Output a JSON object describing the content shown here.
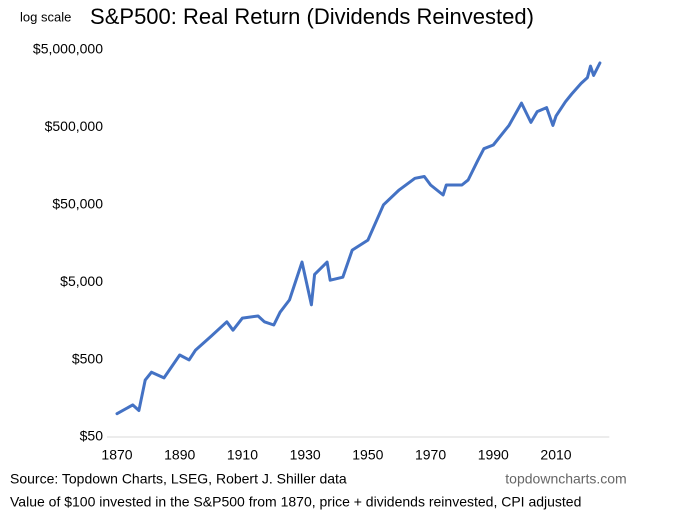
{
  "chart_data": {
    "type": "line",
    "title": "S&P500: Real Return (Dividends Reinvested)",
    "scale_note": "log scale",
    "source": "Source: Topdown Charts, LSEG, Robert J. Shiller data",
    "watermark": "topdowncharts.com",
    "footnote": "Value of $100 invested in the S&P500 from 1870, price + dividends reinvested, CPI adjusted",
    "log_scale": true,
    "color": "#4472c4",
    "x": [
      1870,
      1875,
      1877,
      1879,
      1881,
      1885,
      1890,
      1893,
      1895,
      1900,
      1905,
      1907,
      1910,
      1915,
      1917,
      1920,
      1922,
      1925,
      1929,
      1932,
      1933,
      1937,
      1938,
      1942,
      1945,
      1950,
      1955,
      1960,
      1965,
      1968,
      1970,
      1974,
      1975,
      1980,
      1982,
      1985,
      1987,
      1990,
      1995,
      1999,
      2002,
      2004,
      2007,
      2009,
      2010,
      2013,
      2015,
      2018,
      2020,
      2021,
      2022,
      2024
    ],
    "values": [
      100,
      130,
      110,
      272,
      344,
      290,
      573,
      495,
      660,
      1000,
      1540,
      1200,
      1720,
      1830,
      1540,
      1400,
      2050,
      2950,
      9100,
      2550,
      6300,
      9100,
      5300,
      5800,
      13000,
      17500,
      50000,
      78000,
      110000,
      116000,
      90000,
      67000,
      90000,
      90000,
      105000,
      185000,
      265000,
      296000,
      530000,
      1030000,
      580000,
      800000,
      900000,
      530000,
      700000,
      1070000,
      1350000,
      1850000,
      2200000,
      3100000,
      2350000,
      3400000
    ],
    "xlim": [
      1870,
      2027
    ],
    "xticks": [
      1870,
      1890,
      1910,
      1930,
      1950,
      1970,
      1990,
      2010
    ],
    "ylim": [
      50,
      5000000
    ],
    "yticks": [
      {
        "value": 50,
        "label": "$50"
      },
      {
        "value": 500,
        "label": "$500"
      },
      {
        "value": 5000,
        "label": "$5,000"
      },
      {
        "value": 50000,
        "label": "$50,000"
      },
      {
        "value": 500000,
        "label": "$500,000"
      },
      {
        "value": 5000000,
        "label": "$5,000,000"
      }
    ]
  }
}
